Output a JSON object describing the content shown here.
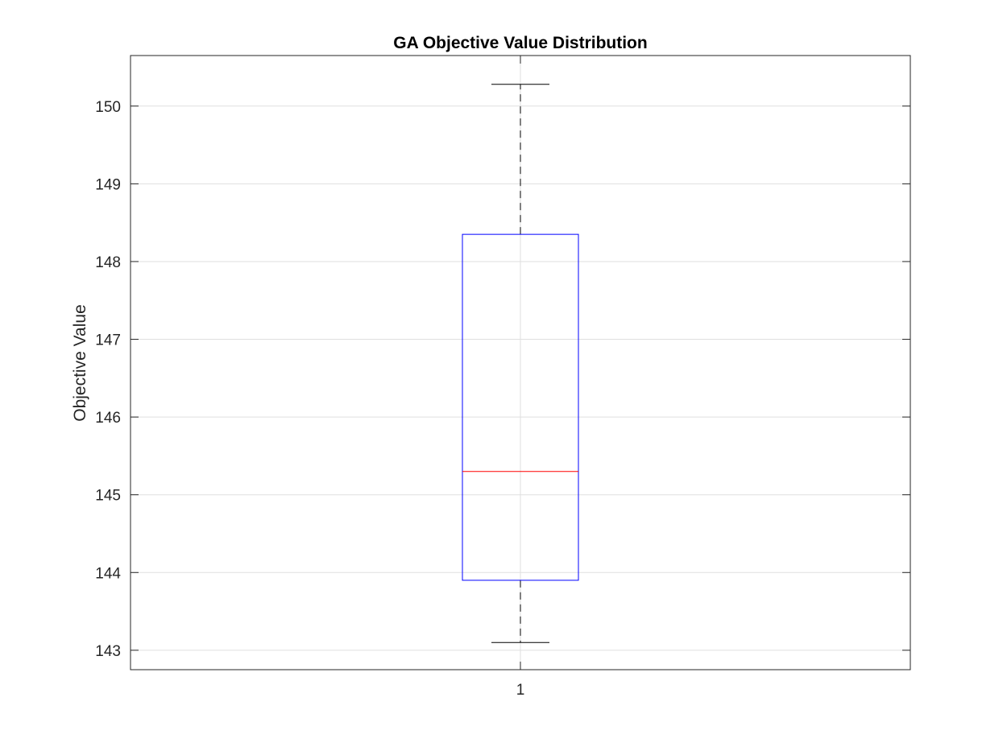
{
  "chart_data": {
    "type": "box",
    "title": "GA Objective Value Distribution",
    "xlabel": "",
    "ylabel": "Objective Value",
    "categories": [
      "1"
    ],
    "boxes": [
      {
        "category": "1",
        "whisker_low": 143.1,
        "q1": 143.9,
        "median": 145.3,
        "q3": 148.35,
        "whisker_high": 150.28
      }
    ],
    "ylim": [
      142.75,
      150.65
    ],
    "yticks": [
      143,
      144,
      145,
      146,
      147,
      148,
      149,
      150
    ],
    "grid": true,
    "colors": {
      "box": "#0000ff",
      "median": "#ff0000",
      "whisker": "#000000",
      "grid": "#dfdfdf",
      "axis": "#262626"
    }
  }
}
